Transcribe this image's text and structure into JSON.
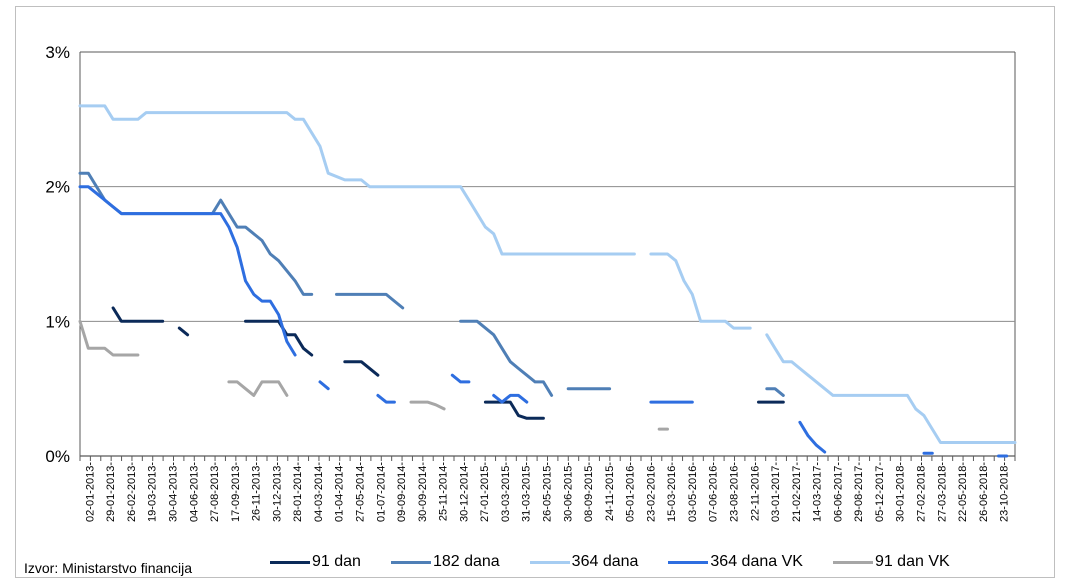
{
  "source": "Izvor: Ministarstvo financija",
  "chart_data": {
    "type": "line",
    "y_ticks": [
      "3%",
      "2%",
      "1%",
      "0%"
    ],
    "ylim": [
      0,
      3
    ],
    "grid": true,
    "legend_position": "bottom",
    "x_tick_labels": [
      "02-01-2013-",
      "29-01-2013-",
      "26-02-2013-",
      "19-03-2013-",
      "30-04-2013-",
      "04-06-2013-",
      "27-08-2013-",
      "17-09-2013-",
      "26-11-2013-",
      "30-12-2013-",
      "28-01-2014-",
      "04-03-2014-",
      "01-04-2014-",
      "27-05-2014-",
      "01-07-2014-",
      "09-09-2014-",
      "30-09-2014-",
      "25-11-2014-",
      "30-12-2014-",
      "27-01-2015-",
      "03-03-2015-",
      "31-03-2015-",
      "26-05-2015-",
      "30-06-2015-",
      "08-09-2015-",
      "24-11-2015-",
      "05-01-2016-",
      "23-02-2016-",
      "15-03-2016-",
      "03-05-2016-",
      "07-06-2016-",
      "23-08-2016-",
      "22-11-2016-",
      "03-01-2017-",
      "21-02-2017-",
      "14-03-2017-",
      "06-06-2017-",
      "29-08-2017-",
      "05-12-2017-",
      "30-01-2018-",
      "27-02-2018-",
      "27-03-2018-",
      "22-05-2018-",
      "26-06-2018-",
      "23-10-2018-"
    ],
    "series": [
      {
        "name": "91 dan",
        "color": "#0b2a59",
        "segments": [
          [
            [
              4,
              1.1
            ],
            [
              5,
              1.0
            ],
            [
              10,
              1.0
            ]
          ],
          [
            [
              12,
              0.95
            ],
            [
              13,
              0.9
            ]
          ],
          [
            [
              20,
              1.0
            ],
            [
              24,
              1.0
            ],
            [
              25,
              0.9
            ],
            [
              26,
              0.9
            ],
            [
              27,
              0.8
            ],
            [
              28,
              0.75
            ]
          ],
          [
            [
              32,
              0.7
            ],
            [
              34,
              0.7
            ],
            [
              36,
              0.6
            ]
          ],
          [
            [
              49,
              0.4
            ],
            [
              52,
              0.4
            ],
            [
              53,
              0.3
            ],
            [
              54,
              0.28
            ],
            [
              56,
              0.28
            ]
          ],
          [
            [
              82,
              0.4
            ],
            [
              85,
              0.4
            ]
          ]
        ]
      },
      {
        "name": "182 dana",
        "color": "#4f7fb6",
        "segments": [
          [
            [
              0,
              2.1
            ],
            [
              1,
              2.1
            ],
            [
              3,
              1.9
            ],
            [
              4,
              1.85
            ],
            [
              5,
              1.8
            ],
            [
              16,
              1.8
            ],
            [
              17,
              1.9
            ],
            [
              18,
              1.8
            ],
            [
              19,
              1.7
            ],
            [
              20,
              1.7
            ],
            [
              22,
              1.6
            ],
            [
              23,
              1.5
            ],
            [
              24,
              1.45
            ],
            [
              26,
              1.3
            ],
            [
              27,
              1.2
            ],
            [
              28,
              1.2
            ]
          ],
          [
            [
              31,
              1.2
            ],
            [
              37,
              1.2
            ],
            [
              38,
              1.15
            ],
            [
              39,
              1.1
            ]
          ],
          [
            [
              46,
              1.0
            ],
            [
              47,
              1.0
            ],
            [
              48,
              1.0
            ],
            [
              50,
              0.9
            ],
            [
              51,
              0.8
            ],
            [
              52,
              0.7
            ],
            [
              53,
              0.65
            ],
            [
              54,
              0.6
            ],
            [
              55,
              0.55
            ],
            [
              56,
              0.55
            ],
            [
              57,
              0.45
            ]
          ],
          [
            [
              59,
              0.5
            ],
            [
              64,
              0.5
            ]
          ],
          [
            [
              83,
              0.5
            ],
            [
              84,
              0.5
            ],
            [
              85,
              0.45
            ]
          ]
        ]
      },
      {
        "name": "364 dana",
        "color": "#a6cdf2",
        "segments": [
          [
            [
              0,
              2.6
            ],
            [
              3,
              2.6
            ],
            [
              4,
              2.5
            ],
            [
              7,
              2.5
            ],
            [
              8,
              2.55
            ],
            [
              25,
              2.55
            ],
            [
              26,
              2.5
            ],
            [
              27,
              2.5
            ],
            [
              28,
              2.4
            ],
            [
              29,
              2.3
            ],
            [
              30,
              2.1
            ],
            [
              32,
              2.05
            ],
            [
              34,
              2.05
            ],
            [
              35,
              2.0
            ],
            [
              46,
              2.0
            ],
            [
              47,
              1.9
            ],
            [
              49,
              1.7
            ],
            [
              50,
              1.65
            ],
            [
              51,
              1.5
            ],
            [
              67,
              1.5
            ]
          ],
          [
            [
              69,
              1.5
            ],
            [
              71,
              1.5
            ],
            [
              72,
              1.45
            ],
            [
              73,
              1.3
            ],
            [
              74,
              1.2
            ],
            [
              75,
              1.0
            ],
            [
              78,
              1.0
            ],
            [
              79,
              0.95
            ],
            [
              80,
              0.95
            ],
            [
              81,
              0.95
            ]
          ],
          [
            [
              83,
              0.9
            ],
            [
              84,
              0.8
            ],
            [
              85,
              0.7
            ],
            [
              86,
              0.7
            ],
            [
              87,
              0.65
            ],
            [
              88,
              0.6
            ],
            [
              89,
              0.55
            ],
            [
              90,
              0.5
            ],
            [
              91,
              0.45
            ],
            [
              100,
              0.45
            ],
            [
              101,
              0.35
            ],
            [
              102,
              0.3
            ],
            [
              103,
              0.2
            ],
            [
              104,
              0.1
            ],
            [
              113,
              0.1
            ]
          ]
        ]
      },
      {
        "name": "364 dana VK",
        "color": "#2e6ee0",
        "segments": [
          [
            [
              0,
              2.0
            ],
            [
              1,
              2.0
            ],
            [
              3,
              1.9
            ],
            [
              4,
              1.85
            ],
            [
              5,
              1.8
            ],
            [
              17,
              1.8
            ],
            [
              18,
              1.7
            ],
            [
              19,
              1.55
            ],
            [
              20,
              1.3
            ],
            [
              21,
              1.2
            ],
            [
              22,
              1.15
            ],
            [
              23,
              1.15
            ],
            [
              24,
              1.05
            ],
            [
              25,
              0.85
            ],
            [
              26,
              0.75
            ]
          ],
          [
            [
              29,
              0.55
            ],
            [
              30,
              0.5
            ]
          ],
          [
            [
              36,
              0.45
            ],
            [
              37,
              0.4
            ],
            [
              38,
              0.4
            ]
          ],
          [
            [
              45,
              0.6
            ],
            [
              46,
              0.55
            ],
            [
              47,
              0.55
            ]
          ],
          [
            [
              50,
              0.45
            ],
            [
              51,
              0.4
            ],
            [
              52,
              0.45
            ],
            [
              53,
              0.45
            ],
            [
              54,
              0.4
            ]
          ],
          [
            [
              69,
              0.4
            ],
            [
              74,
              0.4
            ]
          ],
          [
            [
              87,
              0.25
            ],
            [
              88,
              0.15
            ],
            [
              89,
              0.08
            ],
            [
              90,
              0.03
            ]
          ],
          [
            [
              102,
              0.02
            ],
            [
              103,
              0.02
            ]
          ],
          [
            [
              111,
              0.0
            ],
            [
              112,
              0.0
            ]
          ]
        ]
      },
      {
        "name": "91 dan VK",
        "color": "#a6a6a6",
        "segments": [
          [
            [
              0,
              1.0
            ],
            [
              1,
              0.8
            ],
            [
              2,
              0.8
            ],
            [
              3,
              0.8
            ],
            [
              4,
              0.75
            ],
            [
              7,
              0.75
            ]
          ],
          [
            [
              18,
              0.55
            ],
            [
              19,
              0.55
            ],
            [
              20,
              0.5
            ],
            [
              21,
              0.45
            ],
            [
              22,
              0.55
            ],
            [
              23,
              0.55
            ],
            [
              24,
              0.55
            ],
            [
              25,
              0.45
            ]
          ],
          [
            [
              40,
              0.4
            ],
            [
              42,
              0.4
            ],
            [
              43,
              0.38
            ],
            [
              44,
              0.35
            ]
          ],
          [
            [
              70,
              0.2
            ],
            [
              71,
              0.2
            ]
          ]
        ]
      }
    ]
  }
}
